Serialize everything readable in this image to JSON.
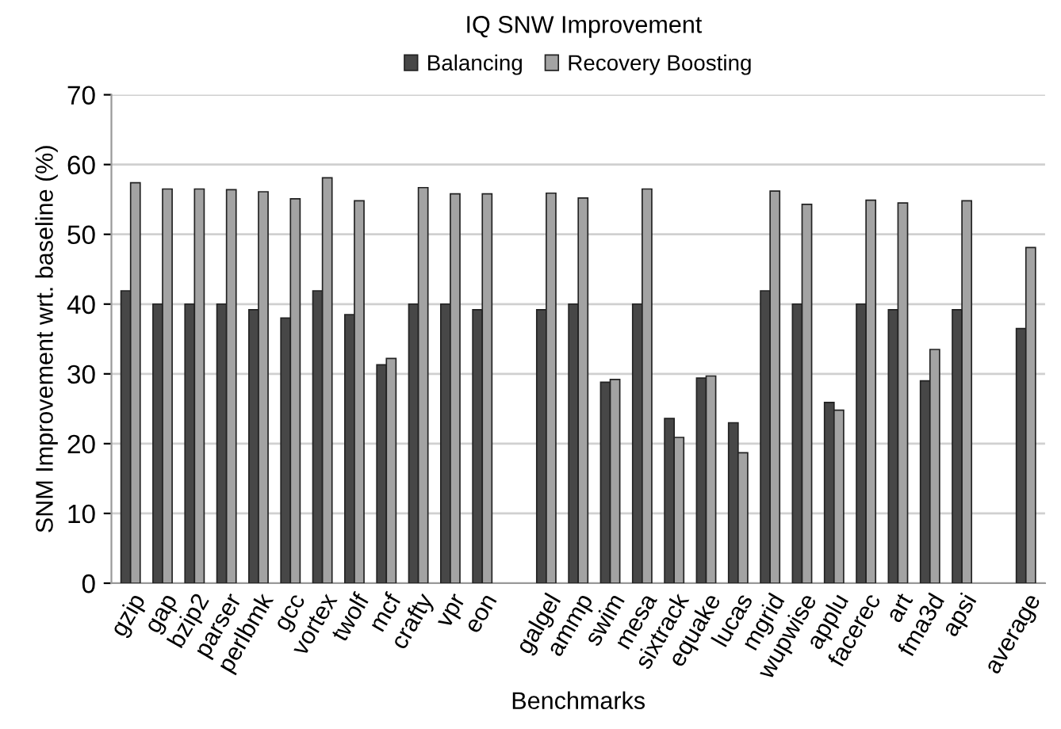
{
  "chart_data": {
    "type": "bar",
    "title": "IQ SNW Improvement",
    "xlabel": "Benchmarks",
    "ylabel": "SNM Improvement wrt. baseline (%)",
    "categories": [
      "gzip",
      "gap",
      "bzip2",
      "parser",
      "perlbmk",
      "gcc",
      "vortex",
      "twolf",
      "mcf",
      "crafty",
      "vpr",
      "eon",
      null,
      "galgel",
      "ammp",
      "swim",
      "mesa",
      "sixtrack",
      "equake",
      "lucas",
      "mgrid",
      "wupwise",
      "applu",
      "facerec",
      "art",
      "fma3d",
      "apsi",
      null,
      "average"
    ],
    "series": [
      {
        "name": "Balancing",
        "color": "#474747",
        "values": [
          41.9,
          40,
          40,
          40,
          39.2,
          38.0,
          41.9,
          38.5,
          31.3,
          40,
          40,
          39.2,
          null,
          39.2,
          40,
          28.8,
          40,
          23.6,
          29.4,
          23.0,
          41.9,
          40,
          25.9,
          40,
          39.2,
          29.0,
          39.2,
          null,
          36.5
        ]
      },
      {
        "name": "Recovery Boosting",
        "color": "#a3a3a3",
        "values": [
          57.4,
          56.5,
          56.5,
          56.4,
          56.1,
          55.1,
          58.1,
          54.8,
          32.2,
          56.7,
          55.8,
          55.8,
          null,
          55.9,
          55.2,
          29.2,
          56.5,
          20.9,
          29.7,
          18.7,
          56.2,
          54.3,
          24.8,
          54.9,
          54.5,
          33.5,
          54.8,
          null,
          48.1
        ]
      }
    ],
    "ylim": [
      0,
      70
    ],
    "yticks": [
      0,
      10,
      20,
      30,
      40,
      50,
      60,
      70
    ],
    "grid": "y",
    "legend": "top"
  }
}
